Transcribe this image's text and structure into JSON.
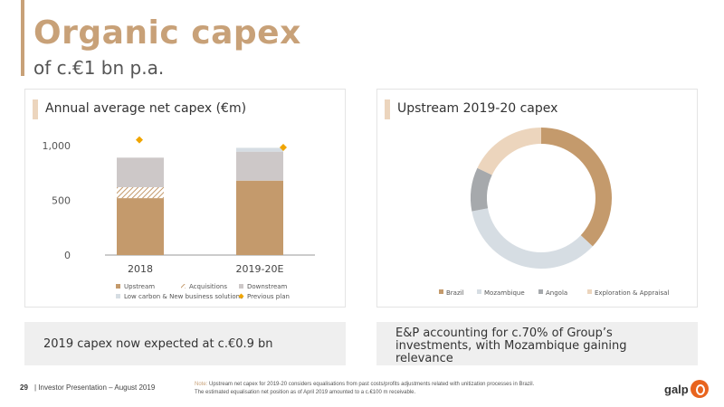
{
  "header": {
    "title": "Organic capex",
    "subtitle": "of c.€1 bn p.a."
  },
  "left_panel": {
    "title": "Annual average net capex (€m)"
  },
  "right_panel": {
    "title": "Upstream 2019-20 capex"
  },
  "left_note": {
    "text": "2019 capex now expected at c.€0.9 bn"
  },
  "right_note": {
    "text": "E&P accounting for c.70% of Group’s investments, with Mozambique gaining relevance"
  },
  "footer": {
    "page": "29",
    "presentation": "| Investor Presentation – August 2019",
    "note_label": "Note:",
    "note_line1": "Upstream net capex for 2019-20 considers equalisations from past costs/profits adjustments related with unitization processes in Brazil.",
    "note_line2": "The estimated equalisation net position as of April 2019 amounted to a c.€100 m receivable.",
    "logo": "galp"
  },
  "colors": {
    "accent": "#c8a178",
    "upstream": "#c49a6c",
    "downstream": "#cdc8c8",
    "low_carbon": "#d6dde3",
    "previous_plan": "#f0a500",
    "brazil": "#c49a6c",
    "mozambique": "#d6dde3",
    "angola": "#a6a9ac",
    "exploration": "#ecd5bd"
  },
  "chart_data": [
    {
      "type": "bar",
      "stacked": true,
      "title": "Annual average net capex (€m)",
      "categories": [
        "2018",
        "2019-20E"
      ],
      "ylim": [
        0,
        1000
      ],
      "yticks": [
        0,
        500,
        1000
      ],
      "ytick_labels": [
        "0",
        "500",
        "1,000"
      ],
      "series": [
        {
          "name": "Upstream",
          "values": [
            520,
            680
          ],
          "color": "#c49a6c"
        },
        {
          "name": "Acquisitions",
          "values": [
            100,
            0
          ],
          "color": "#c49a6c",
          "pattern": "hatch"
        },
        {
          "name": "Downstream",
          "values": [
            270,
            265
          ],
          "color": "#cdc8c8"
        },
        {
          "name": "Low carbon & New business solutions",
          "values": [
            0,
            35
          ],
          "color": "#d6dde3"
        }
      ],
      "markers": [
        {
          "name": "Previous plan",
          "values": [
            1020,
            950
          ],
          "color": "#f0a500"
        }
      ],
      "legend": [
        "Upstream",
        "Acquisitions",
        "Downstream",
        "Low carbon & New business solutions",
        "Previous plan"
      ],
      "legend_position": "bottom",
      "grid": false
    },
    {
      "type": "pie",
      "donut": true,
      "title": "Upstream 2019-20 capex",
      "labels": [
        "Brazil",
        "Mozambique",
        "Angola",
        "Exploration & Appraisal"
      ],
      "values": [
        37,
        35,
        10,
        18
      ],
      "colors": [
        "#c49a6c",
        "#d6dde3",
        "#a6a9ac",
        "#ecd5bd"
      ],
      "legend_position": "bottom"
    }
  ]
}
